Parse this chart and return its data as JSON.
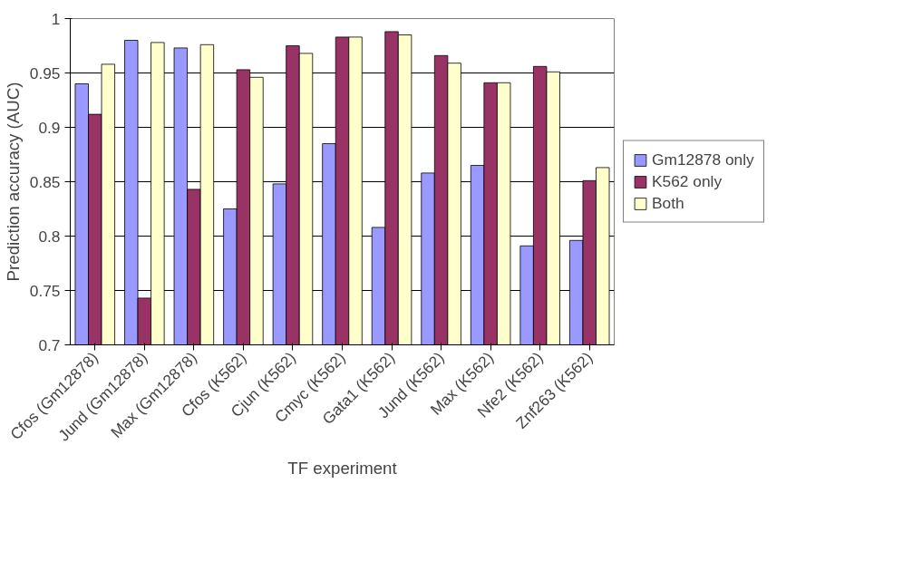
{
  "chart_data": {
    "type": "bar",
    "xlabel": "TF experiment",
    "ylabel": "Prediction accuracy (AUC)",
    "categories": [
      "Cfos (Gm12878)",
      "Jund (Gm12878)",
      "Max (Gm12878)",
      "Cfos (K562)",
      "Cjun (K562)",
      "Cmyc (K562)",
      "Gata1 (K562)",
      "Jund (K562)",
      "Max (K562)",
      "Nfe2 (K562)",
      "Znf263 (K562)"
    ],
    "series": [
      {
        "name": "Gm12878 only",
        "color": "#9999ff",
        "values": [
          0.94,
          0.98,
          0.973,
          0.825,
          0.848,
          0.885,
          0.808,
          0.858,
          0.865,
          0.791,
          0.796
        ]
      },
      {
        "name": "K562 only",
        "color": "#993366",
        "values": [
          0.912,
          0.743,
          0.843,
          0.953,
          0.975,
          0.983,
          0.988,
          0.966,
          0.941,
          0.956,
          0.851
        ]
      },
      {
        "name": "Both",
        "color": "#ffffcc",
        "values": [
          0.958,
          0.978,
          0.976,
          0.946,
          0.968,
          0.983,
          0.985,
          0.959,
          0.941,
          0.951,
          0.863
        ]
      }
    ],
    "ylim": [
      0.7,
      1
    ],
    "yticks": [
      0.7,
      0.75,
      0.8,
      0.85,
      0.9,
      0.95,
      1
    ],
    "grid": "y",
    "legend": "right"
  }
}
